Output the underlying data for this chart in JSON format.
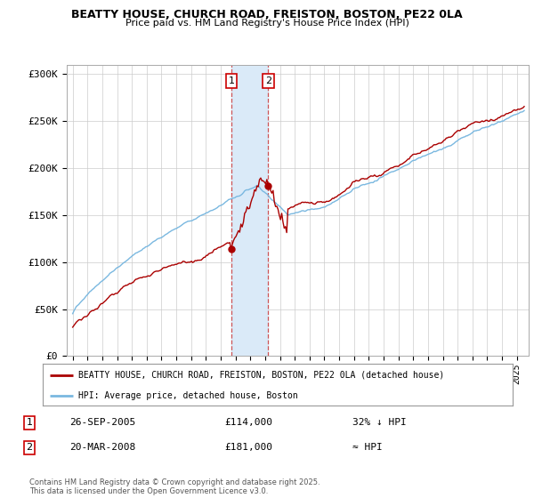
{
  "title": "BEATTY HOUSE, CHURCH ROAD, FREISTON, BOSTON, PE22 0LA",
  "subtitle": "Price paid vs. HM Land Registry's House Price Index (HPI)",
  "legend_house": "BEATTY HOUSE, CHURCH ROAD, FREISTON, BOSTON, PE22 0LA (detached house)",
  "legend_hpi": "HPI: Average price, detached house, Boston",
  "annotation1_date": "26-SEP-2005",
  "annotation1_price": "£114,000",
  "annotation1_note": "32% ↓ HPI",
  "annotation2_date": "20-MAR-2008",
  "annotation2_price": "£181,000",
  "annotation2_note": "≈ HPI",
  "footer": "Contains HM Land Registry data © Crown copyright and database right 2025.\nThis data is licensed under the Open Government Licence v3.0.",
  "hpi_color": "#7ab8e0",
  "house_color": "#aa0000",
  "ylim_min": 0,
  "ylim_max": 310000,
  "yticks": [
    0,
    50000,
    100000,
    150000,
    200000,
    250000,
    300000
  ],
  "ytick_labels": [
    "£0",
    "£50K",
    "£100K",
    "£150K",
    "£200K",
    "£250K",
    "£300K"
  ],
  "sale1_x": 2005.73,
  "sale1_y": 114000,
  "sale2_x": 2008.21,
  "sale2_y": 181000,
  "xmin": 1995.0,
  "xmax": 2025.5,
  "highlight_color": "#daeaf8"
}
